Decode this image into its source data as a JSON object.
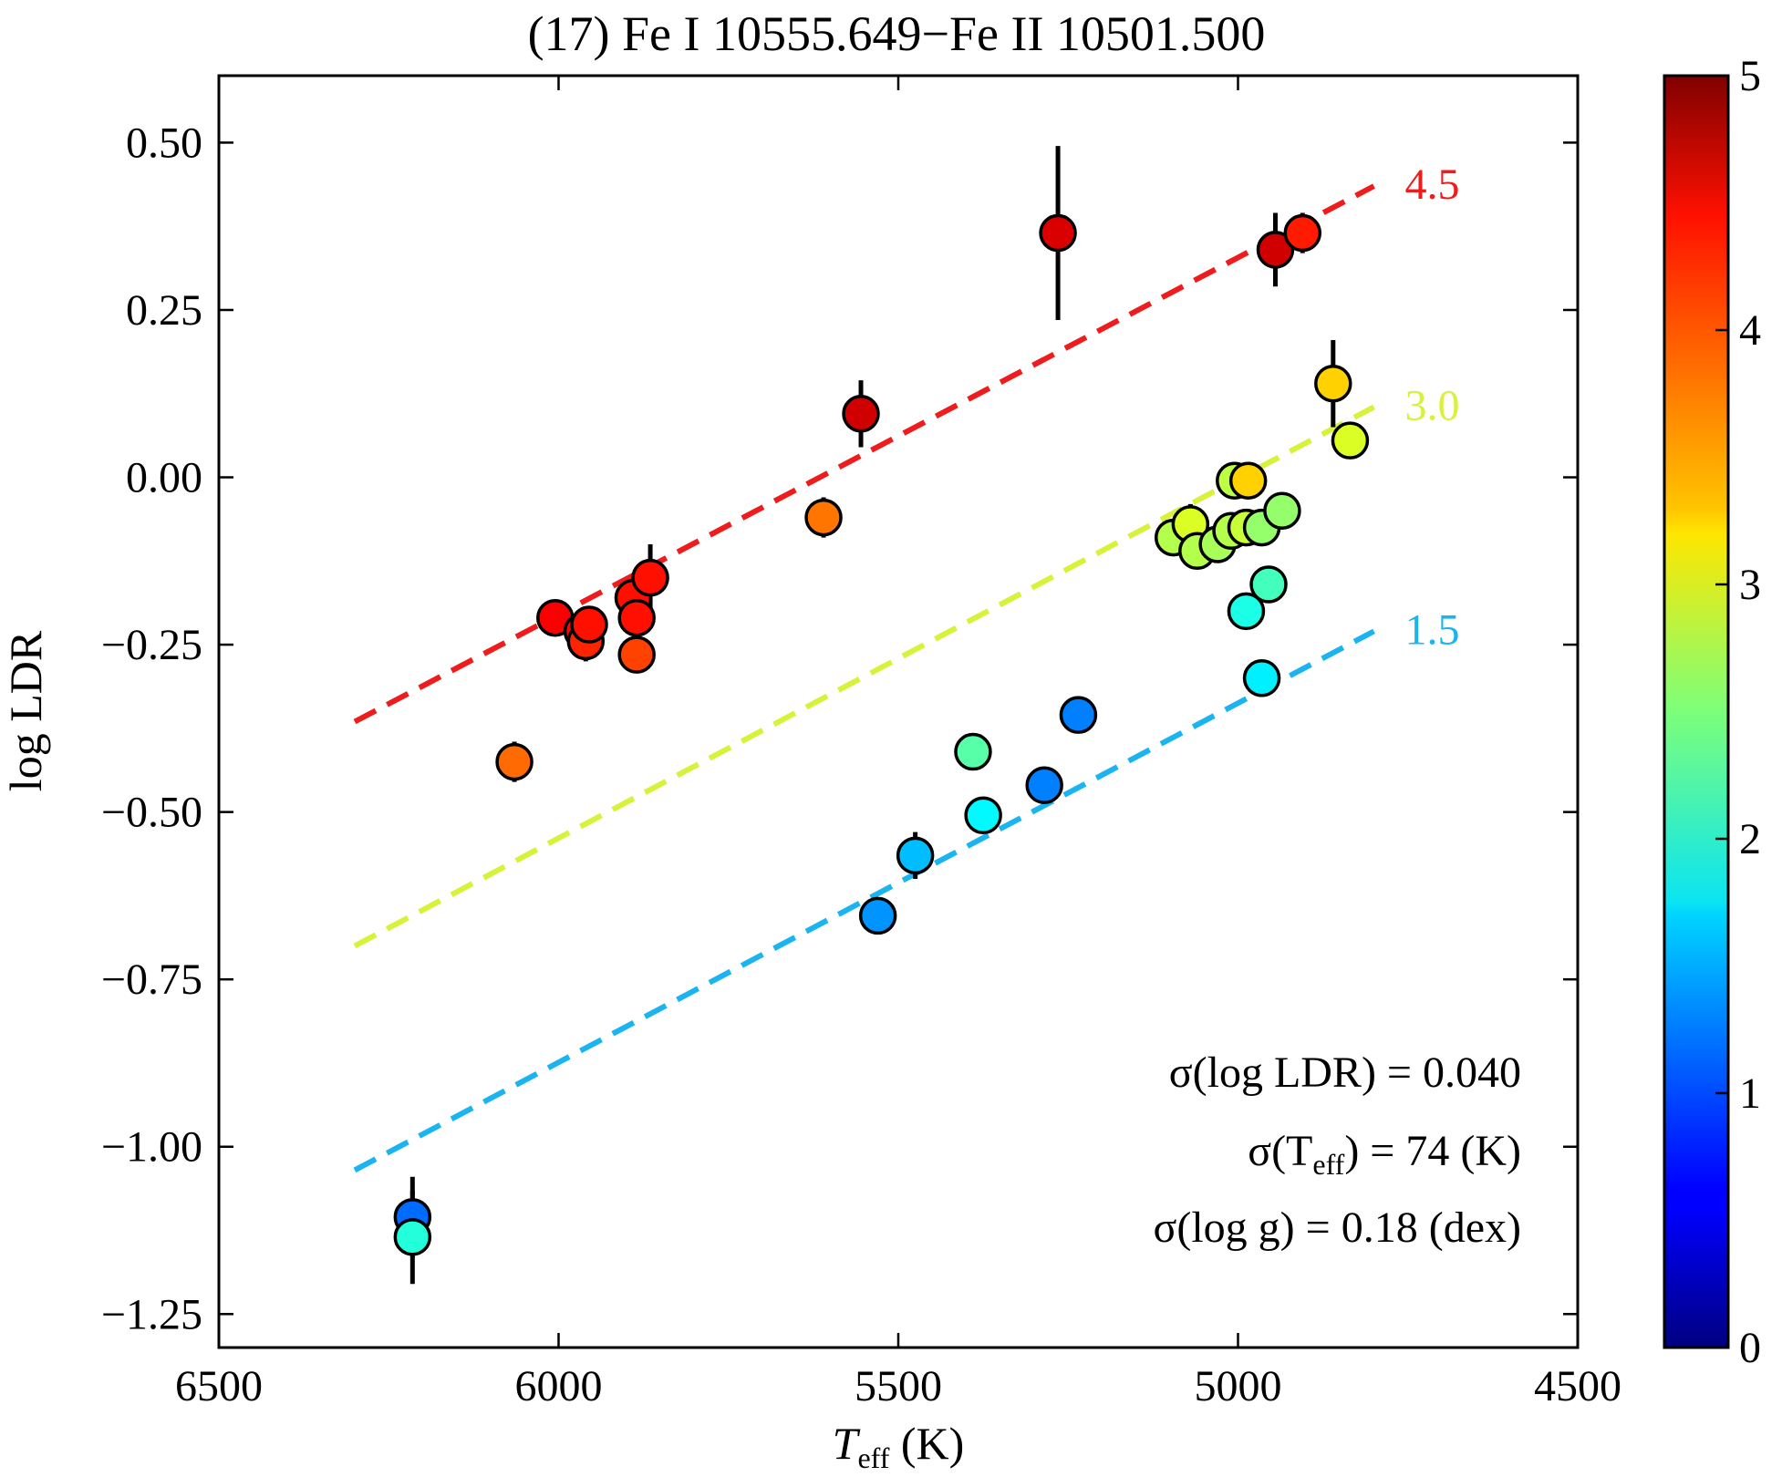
{
  "chart_data": {
    "type": "scatter",
    "title": "(17) Fe I 10555.649−Fe II 10501.500",
    "xlabel": {
      "symbol": "T",
      "sub": "eff",
      "unit": " (K)"
    },
    "ylabel": "log LDR",
    "xlim": [
      6500,
      4500
    ],
    "ylim": [
      -1.3,
      0.6
    ],
    "xticks": [
      6500,
      6000,
      5500,
      5000,
      4500
    ],
    "yticks": [
      0.5,
      0.25,
      0.0,
      -0.25,
      -0.5,
      -0.75,
      -1.0,
      -1.25
    ],
    "ytick_labels": [
      "0.50",
      "0.25",
      "0.00",
      "−0.25",
      "−0.50",
      "−0.75",
      "−1.00",
      "−1.25"
    ],
    "colorbar": {
      "min": 0,
      "max": 5,
      "colormap": "jet",
      "ticks": [
        0,
        1,
        2,
        3,
        4,
        5
      ],
      "tick_labels": [
        "0",
        "1",
        "2",
        "3",
        "4",
        "5"
      ]
    },
    "fit_lines": [
      {
        "label": "4.5",
        "logg": 4.5,
        "x": [
          6300,
          4800
        ],
        "y": [
          -0.365,
          0.435
        ],
        "color": "#ee1c1c"
      },
      {
        "label": "3.0",
        "logg": 3.0,
        "x": [
          6300,
          4800
        ],
        "y": [
          -0.7,
          0.105
        ],
        "color": "#d8f23a"
      },
      {
        "label": "1.5",
        "logg": 1.5,
        "x": [
          6300,
          4800
        ],
        "y": [
          -1.035,
          -0.23
        ],
        "color": "#1ab4f0"
      }
    ],
    "points": [
      {
        "teff": 6215,
        "ldr": -1.105,
        "err": 0.06,
        "logg": 1.15
      },
      {
        "teff": 6215,
        "ldr": -1.135,
        "err": 0.07,
        "logg": 2.05
      },
      {
        "teff": 6065,
        "ldr": -0.425,
        "err": 0.03,
        "logg": 3.85
      },
      {
        "teff": 6005,
        "ldr": -0.21,
        "err": 0.02,
        "logg": 4.4
      },
      {
        "teff": 5965,
        "ldr": -0.23,
        "err": 0.02,
        "logg": 4.35
      },
      {
        "teff": 5960,
        "ldr": -0.245,
        "err": 0.03,
        "logg": 4.2
      },
      {
        "teff": 5955,
        "ldr": -0.22,
        "err": 0.02,
        "logg": 4.3
      },
      {
        "teff": 5890,
        "ldr": -0.18,
        "err": 0.02,
        "logg": 4.3
      },
      {
        "teff": 5885,
        "ldr": -0.21,
        "err": 0.03,
        "logg": 4.3
      },
      {
        "teff": 5885,
        "ldr": -0.265,
        "err": 0.02,
        "logg": 4.05
      },
      {
        "teff": 5865,
        "ldr": -0.15,
        "err": 0.05,
        "logg": 4.3
      },
      {
        "teff": 5610,
        "ldr": -0.06,
        "err": 0.03,
        "logg": 3.8
      },
      {
        "teff": 5555,
        "ldr": 0.095,
        "err": 0.05,
        "logg": 4.6
      },
      {
        "teff": 5530,
        "ldr": -0.655,
        "err": 0.02,
        "logg": 1.35
      },
      {
        "teff": 5475,
        "ldr": -0.565,
        "err": 0.035,
        "logg": 1.55
      },
      {
        "teff": 5390,
        "ldr": -0.41,
        "err": 0.01,
        "logg": 2.3
      },
      {
        "teff": 5375,
        "ldr": -0.505,
        "err": 0.01,
        "logg": 1.85
      },
      {
        "teff": 5285,
        "ldr": -0.46,
        "err": 0.01,
        "logg": 1.25
      },
      {
        "teff": 5265,
        "ldr": 0.365,
        "err": 0.13,
        "logg": 4.55
      },
      {
        "teff": 5235,
        "ldr": -0.355,
        "err": 0.01,
        "logg": 1.25
      },
      {
        "teff": 5095,
        "ldr": -0.09,
        "err": 0.01,
        "logg": 2.75
      },
      {
        "teff": 5070,
        "ldr": -0.07,
        "err": 0.03,
        "logg": 2.95
      },
      {
        "teff": 5060,
        "ldr": -0.11,
        "err": 0.01,
        "logg": 2.75
      },
      {
        "teff": 5030,
        "ldr": -0.1,
        "err": 0.01,
        "logg": 2.7
      },
      {
        "teff": 5010,
        "ldr": -0.08,
        "err": 0.01,
        "logg": 2.75
      },
      {
        "teff": 5005,
        "ldr": -0.005,
        "err": 0.01,
        "logg": 2.8
      },
      {
        "teff": 4985,
        "ldr": -0.005,
        "err": 0.01,
        "logg": 3.35
      },
      {
        "teff": 4988,
        "ldr": -0.075,
        "err": 0.01,
        "logg": 2.85
      },
      {
        "teff": 4988,
        "ldr": -0.2,
        "err": 0.01,
        "logg": 2.0
      },
      {
        "teff": 4965,
        "ldr": -0.075,
        "err": 0.01,
        "logg": 2.6
      },
      {
        "teff": 4965,
        "ldr": -0.3,
        "err": 0.01,
        "logg": 1.8
      },
      {
        "teff": 4955,
        "ldr": -0.16,
        "err": 0.01,
        "logg": 2.2
      },
      {
        "teff": 4945,
        "ldr": 0.34,
        "err": 0.055,
        "logg": 4.6
      },
      {
        "teff": 4935,
        "ldr": -0.05,
        "err": 0.01,
        "logg": 2.6
      },
      {
        "teff": 4905,
        "ldr": 0.365,
        "err": 0.03,
        "logg": 4.25
      },
      {
        "teff": 4860,
        "ldr": 0.14,
        "err": 0.065,
        "logg": 3.35
      },
      {
        "teff": 4835,
        "ldr": 0.055,
        "err": 0.01,
        "logg": 2.95
      }
    ],
    "annotations": [
      {
        "prefix": "σ(log LDR) = 0.040",
        "suffix": ""
      },
      {
        "prefix": "σ(T",
        "sub": "eff",
        "suffix": ") = 74 (K)"
      },
      {
        "prefix": "σ(log g) = 0.18 (dex)",
        "suffix": ""
      }
    ]
  }
}
